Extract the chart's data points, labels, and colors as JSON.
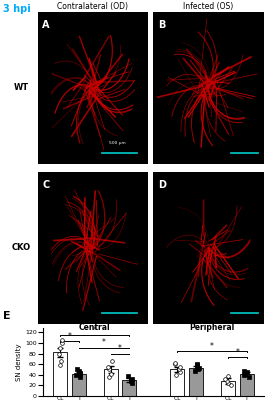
{
  "title_hpi": "3 hpi",
  "col_labels": [
    "Contralateral (OD)",
    "Infected (OS)"
  ],
  "row_labels": [
    "WT",
    "CKO"
  ],
  "panel_labels": [
    "A",
    "B",
    "C",
    "D"
  ],
  "panel_E_label": "E",
  "bar_width": 0.35,
  "ylabel": "SN density",
  "yticks": [
    0,
    20,
    40,
    60,
    80,
    100,
    120
  ],
  "ylim": [
    0,
    128
  ],
  "central_WT_CL_mean": 82,
  "central_WT_CL_sem": 8,
  "central_WT_CL_points": [
    58,
    65,
    80,
    90,
    100,
    105
  ],
  "central_WT_I_mean": 42,
  "central_WT_I_sem": 3,
  "central_WT_I_points": [
    36,
    40,
    42,
    44,
    48,
    50
  ],
  "central_CKO_CL_mean": 50,
  "central_CKO_CL_sem": 6,
  "central_CKO_CL_points": [
    35,
    42,
    50,
    55,
    65
  ],
  "central_CKO_I_mean": 30,
  "central_CKO_I_sem": 4,
  "central_CKO_I_points": [
    25,
    28,
    32,
    38
  ],
  "peripheral_WT_CL_mean": 50,
  "peripheral_WT_CL_sem": 5,
  "peripheral_WT_CL_points": [
    40,
    45,
    50,
    55,
    60,
    62
  ],
  "peripheral_WT_I_mean": 53,
  "peripheral_WT_I_sem": 4,
  "peripheral_WT_I_points": [
    47,
    50,
    52,
    55,
    58,
    60
  ],
  "peripheral_CKO_CL_mean": 28,
  "peripheral_CKO_CL_sem": 5,
  "peripheral_CKO_CL_points": [
    20,
    25,
    28,
    32,
    38
  ],
  "peripheral_CKO_I_mean": 42,
  "peripheral_CKO_I_sem": 4,
  "peripheral_CKO_I_points": [
    36,
    40,
    42,
    45,
    48
  ],
  "background_color": "#ffffff",
  "microscopy_bg": "#000000",
  "nerve_color": "#cc0000",
  "scale_bar_color": "#00cccc",
  "hpi_color": "#00aaff"
}
